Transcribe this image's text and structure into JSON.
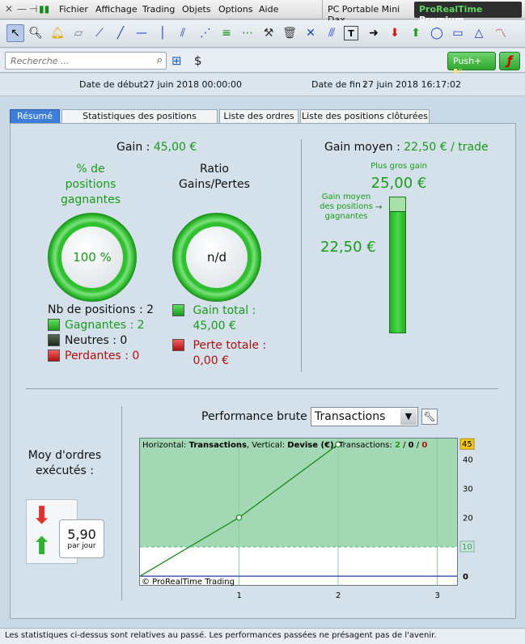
{
  "menu": {
    "items": [
      "Fichier",
      "Affichage",
      "Trading",
      "Objets",
      "Options",
      "Aide"
    ],
    "platform": "PC Portable Mini Dax",
    "brand_part1": "ProRealTime",
    "brand_part2": "Premium"
  },
  "toolbar": {
    "icons": [
      "pointer-icon",
      "zoom-icon",
      "alert-bell-icon",
      "ruler-icon",
      "line-icon",
      "trend-line-icon",
      "horizontal-line-icon",
      "vertical-line-icon",
      "channel-icon",
      "fan-icon",
      "fibonacci-icon",
      "gann-icon",
      "hammer-icon",
      "trash-icon",
      "cross-icon",
      "parallel-icon",
      "text-icon",
      "arrow-right-icon",
      "arrow-down-icon",
      "arrow-up-icon",
      "ellipse-icon",
      "rectangle-icon",
      "triangle-icon",
      "wave-icon"
    ]
  },
  "search": {
    "placeholder": "Recherche ..."
  },
  "push_button": "Push+",
  "dates": {
    "start_label": "Date de début :",
    "start_value": "27 juin 2018 00:00:00",
    "end_label": "Date de fin :",
    "end_value": "27 juin 2018 16:17:02"
  },
  "tabs": [
    "Résumé",
    "Statistiques des positions clôturées",
    "Liste des ordres",
    "Liste des positions clôturées"
  ],
  "summary": {
    "gain_label": "Gain :",
    "gain_value": "45,00 €",
    "pct_winning_label": "% de positions gagnantes",
    "pct_winning_value": "100 %",
    "ratio_label": "Ratio Gains/Pertes",
    "ratio_value": "n/d",
    "nb_positions": "Nb de positions : 2",
    "winning": "Gagnantes : 2",
    "neutral": "Neutres : 0",
    "losing": "Perdantes : 0",
    "total_gain": "Gain total : 45,00 €",
    "total_loss": "Perte totale : 0,00 €",
    "avg_gain_label": "Gain moyen :",
    "avg_gain_value": "22,50 € / trade",
    "biggest_gain_label": "Plus gros gain",
    "biggest_gain_value": "25,00 €",
    "avg_winning_label": "Gain moyen des positions gagnantes",
    "avg_winning_value": "22,50 €",
    "bar_fill_fraction": 0.9
  },
  "orders": {
    "label": "Moy d'ordres exécutés :",
    "value": "5,90",
    "unit": "par jour"
  },
  "performance": {
    "label": "Performance brute",
    "select_value": "Transactions",
    "legend_h_prefix": "Horizontal: ",
    "legend_h": "Transactions",
    "legend_v_prefix": ", Vertical: ",
    "legend_v": "Devise (€)",
    "legend_t_prefix": ", Transactions: ",
    "legend_t_win": "2",
    "legend_t_sep1": " / ",
    "legend_t_neutral": "0",
    "legend_t_sep2": " / ",
    "legend_t_loss": "0",
    "copyright": "© ProRealTime Trading"
  },
  "chart_data": {
    "type": "line",
    "x": [
      0,
      1,
      2
    ],
    "y": [
      0,
      20,
      45
    ],
    "xticks": [
      "1",
      "2",
      "3"
    ],
    "yticks": [
      "40",
      "30",
      "20",
      "0"
    ],
    "xlim": [
      0,
      3.2
    ],
    "ylim": [
      -3,
      47
    ],
    "flag_high": "45",
    "flag_low": "10",
    "reference_level": 10,
    "colors": {
      "line": "#1a8a1a",
      "fill": "#a3d8b4",
      "zero_line": "#1f3cb0"
    }
  },
  "status": "Les statistiques ci-dessus sont relatives au passé. Les performances passées ne présagent pas de l'avenir."
}
